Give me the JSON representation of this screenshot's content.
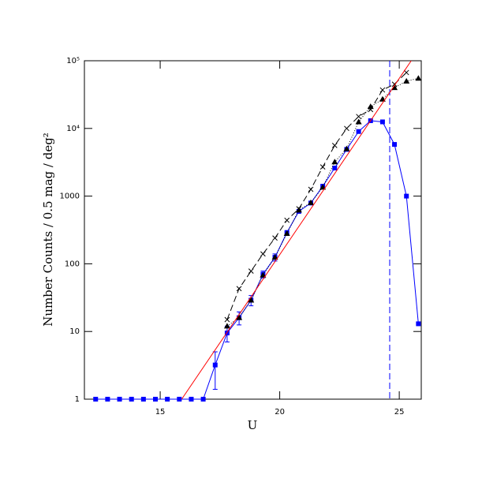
{
  "chart_data": {
    "type": "line",
    "xlabel": "U",
    "ylabel": "Number Counts / 0.5 mag / deg²",
    "xlim": [
      11.83,
      25.92
    ],
    "ylim": [
      1,
      100000
    ],
    "log_y": true,
    "xticks": [
      15,
      20,
      25
    ],
    "yticks": [
      1,
      10,
      100,
      1000,
      {
        "value": 10000,
        "label": "10⁴"
      },
      {
        "value": 100000,
        "label": "10⁵"
      }
    ],
    "vline": {
      "x": 24.6,
      "color": "#0000ff",
      "dash": "8,4"
    },
    "series": [
      {
        "color": "#0000ff",
        "marker": "square",
        "dash": "none",
        "x": [
          12.3,
          12.8,
          13.3,
          13.8,
          14.3,
          14.8,
          15.3,
          15.8,
          16.3,
          16.8,
          17.3,
          17.8,
          18.3,
          18.8,
          19.3,
          19.8,
          20.3,
          20.8,
          21.3,
          21.8,
          22.3,
          22.8,
          23.3,
          23.8,
          24.3,
          24.8,
          25.3,
          25.8
        ],
        "values": [
          1,
          1,
          1,
          1,
          1,
          1,
          1,
          1,
          1,
          1,
          3.2,
          9.5,
          16,
          29,
          70,
          125,
          290,
          595,
          790,
          1400,
          2600,
          4900,
          9000,
          13000,
          12500,
          5800,
          1000,
          13
        ],
        "errors": [
          null,
          null,
          null,
          null,
          null,
          null,
          null,
          null,
          null,
          null,
          1.8,
          2.5,
          3.5,
          5,
          8,
          15,
          null,
          null,
          null,
          null,
          null,
          null,
          null,
          null,
          null,
          null,
          null,
          null
        ]
      },
      {
        "color": "#000000",
        "marker": "cross",
        "dash": "8,4",
        "x": [
          17.8,
          18.3,
          18.8,
          19.3,
          19.8,
          20.3,
          20.8,
          21.3,
          21.8,
          22.3,
          22.8,
          23.3,
          23.8,
          24.3,
          24.8,
          25.3
        ],
        "values": [
          15,
          43,
          78,
          140,
          240,
          440,
          650,
          1260,
          2700,
          5600,
          10000,
          15000,
          19000,
          37000,
          45000,
          67000
        ]
      },
      {
        "color": "#000000",
        "marker": "triangle",
        "dash": "1,2",
        "x": [
          17.8,
          18.3,
          18.8,
          19.3,
          19.8,
          20.3,
          20.8,
          21.3,
          21.8,
          22.3,
          22.8,
          23.3,
          23.8,
          24.3,
          24.8,
          25.3,
          25.8
        ],
        "values": [
          12,
          16,
          29,
          68,
          125,
          280,
          620,
          800,
          1350,
          3200,
          5000,
          12500,
          21000,
          27000,
          40000,
          50000,
          55000
        ]
      },
      {
        "color": "#ff0000",
        "marker": "none",
        "dash": "none",
        "x": [
          15.9,
          25.5
        ],
        "values": [
          1,
          100000
        ]
      }
    ]
  }
}
